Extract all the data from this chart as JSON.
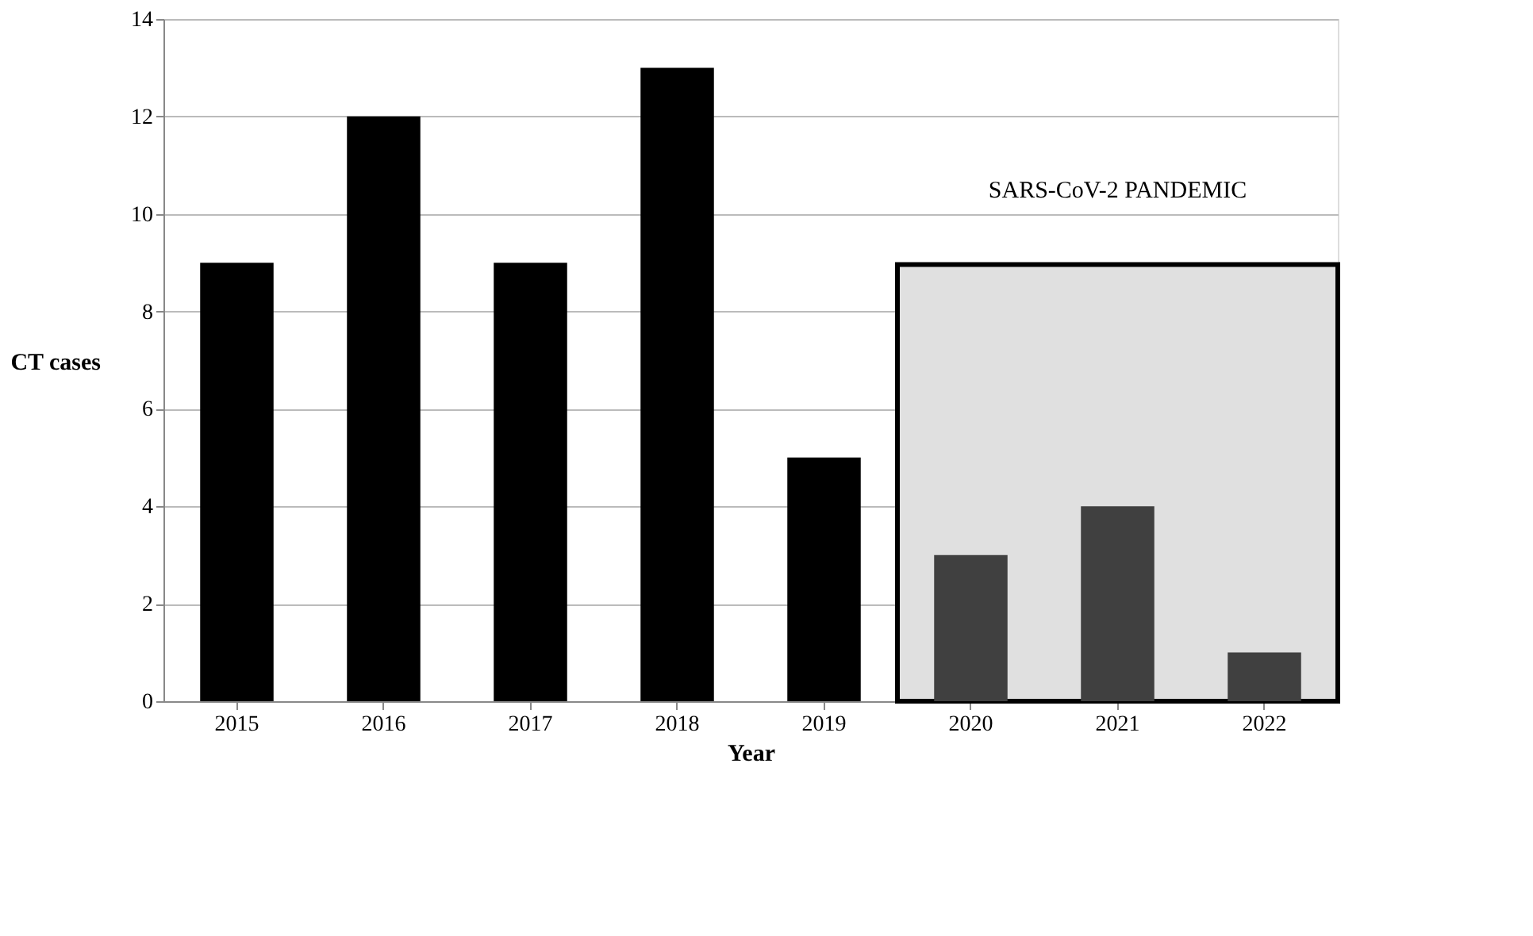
{
  "chart_data": {
    "type": "bar",
    "xlabel": "Year",
    "ylabel": "CT cases",
    "categories": [
      "2015",
      "2016",
      "2017",
      "2018",
      "2019",
      "2020",
      "2021",
      "2022"
    ],
    "values": [
      9,
      12,
      9,
      13,
      5,
      3,
      4,
      1
    ],
    "colors": [
      "#000000",
      "#000000",
      "#000000",
      "#000000",
      "#000000",
      "#404040",
      "#404040",
      "#404040"
    ],
    "ylim": [
      0,
      14
    ],
    "yticks": [
      0,
      2,
      4,
      6,
      8,
      10,
      12,
      14
    ],
    "grid": "y",
    "bands": [
      {
        "axis": "x",
        "from": "2020",
        "to": "2022",
        "label": "SARS-CoV-2 PANDEMIC",
        "color": "#e0e0e0"
      }
    ]
  }
}
